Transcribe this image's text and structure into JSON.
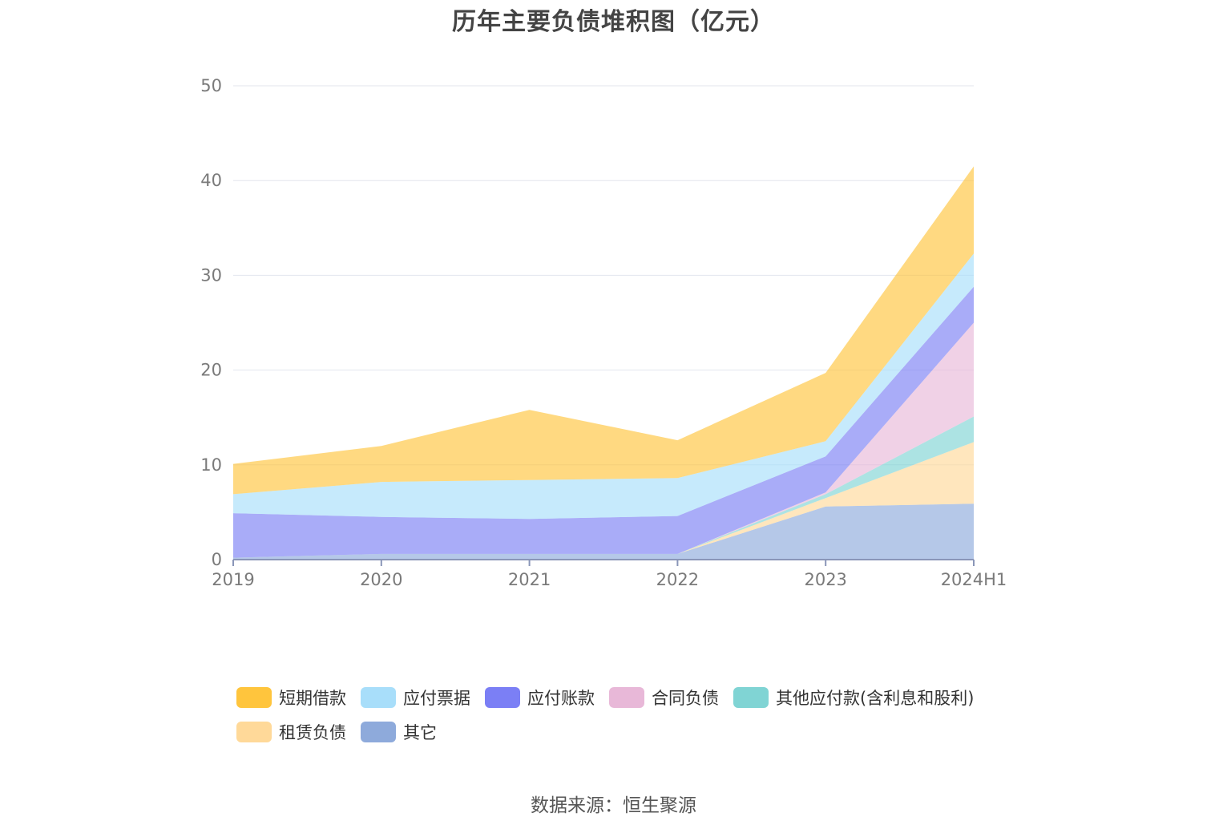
{
  "chart_data": {
    "type": "area",
    "stacked": true,
    "title": "历年主要负债堆积图（亿元）",
    "categories": [
      "2019",
      "2020",
      "2021",
      "2022",
      "2023",
      "2024H1"
    ],
    "ylim": [
      0,
      50
    ],
    "yticks": [
      0,
      10,
      20,
      30,
      40,
      50
    ],
    "grid": true,
    "legend_position": "bottom",
    "series": [
      {
        "name": "其它",
        "color": "#8eaadb",
        "values": [
          0.2,
          0.6,
          0.6,
          0.6,
          5.6,
          5.9
        ]
      },
      {
        "name": "租赁负债",
        "color": "#ffd999",
        "values": [
          0.0,
          0.0,
          0.0,
          0.0,
          0.9,
          6.5
        ]
      },
      {
        "name": "其他应付款(含利息和股利)",
        "color": "#80d4d4",
        "values": [
          0.0,
          0.0,
          0.0,
          0.0,
          0.4,
          2.7
        ]
      },
      {
        "name": "合同负债",
        "color": "#e8b8d8",
        "values": [
          0.0,
          0.0,
          0.0,
          0.0,
          0.2,
          9.9
        ]
      },
      {
        "name": "应付账款",
        "color": "#7b7ff5",
        "values": [
          4.7,
          3.9,
          3.7,
          4.0,
          3.8,
          3.8
        ]
      },
      {
        "name": "应付票据",
        "color": "#a8defa",
        "values": [
          2.0,
          3.7,
          4.1,
          4.0,
          1.6,
          3.5
        ]
      },
      {
        "name": "短期借款",
        "color": "#ffc53d",
        "values": [
          3.2,
          3.8,
          7.4,
          4.0,
          7.2,
          9.2
        ]
      }
    ],
    "legend_order": [
      "短期借款",
      "应付票据",
      "应付账款",
      "合同负债",
      "其他应付款(含利息和股利)",
      "租赁负债",
      "其它"
    ],
    "source": "数据来源：恒生聚源"
  }
}
